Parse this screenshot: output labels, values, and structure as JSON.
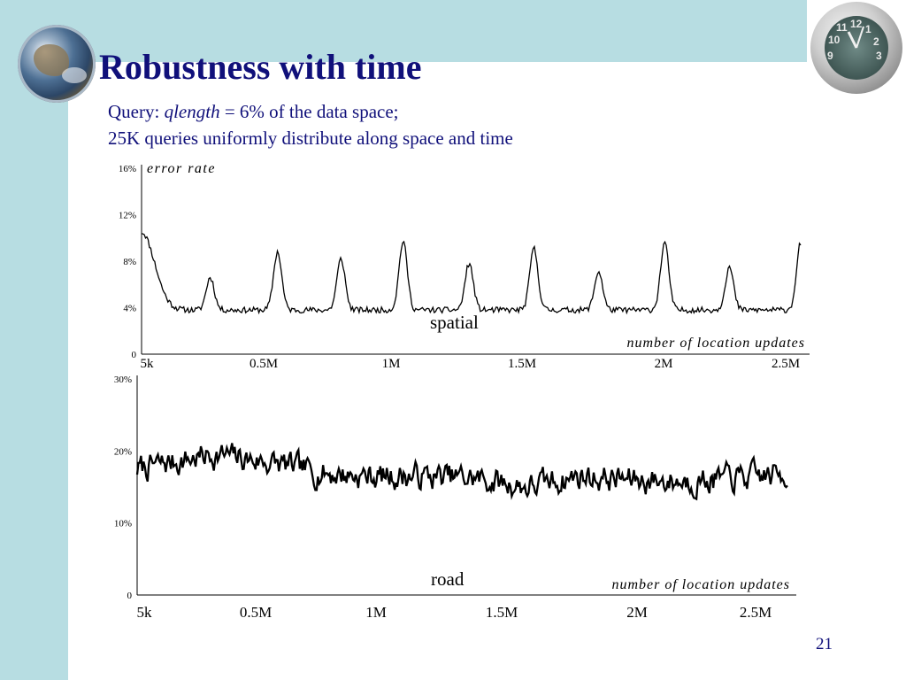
{
  "slide": {
    "title": "Robustness with time",
    "query_prefix": "Query: ",
    "query_var": "qlength",
    "query_suffix": " = 6% of the data space;",
    "line2": "25K queries uniformly distribute along space and time",
    "page_number": "21"
  },
  "decor": {
    "left_image": "globe-image",
    "right_image": "clock-image",
    "clock_numbers": [
      "12",
      "1",
      "2",
      "3",
      "9",
      "10",
      "11"
    ]
  },
  "colors": {
    "band": "#b7dde2",
    "title": "#10107a",
    "line": "#000000"
  },
  "chart_data": [
    {
      "type": "line",
      "label": "spatial",
      "xlabel": "number of location updates",
      "ylabel": "error rate",
      "xlim": [
        5000,
        2500000
      ],
      "ylim": [
        0,
        16
      ],
      "x_ticks": [
        "5k",
        "0.5M",
        "1M",
        "1.5M",
        "2M",
        "2.5M"
      ],
      "x_tick_values": [
        5000,
        500000,
        1000000,
        1500000,
        2000000,
        2500000
      ],
      "y_ticks": [
        "0",
        "4%",
        "8%",
        "12%",
        "16%"
      ],
      "y_tick_values": [
        0,
        4,
        8,
        12,
        16
      ],
      "peaks_x": [
        265000,
        520000,
        760000,
        995000,
        1245000,
        1490000,
        1735000,
        1985000,
        2230000
      ],
      "peaks_y": [
        6.6,
        8.8,
        8.2,
        9.7,
        7.8,
        9.1,
        7.1,
        9.6,
        7.5
      ],
      "baseline": 3.8,
      "start_value": 10.5,
      "end_value": 9.6,
      "grid": false
    },
    {
      "type": "line",
      "label": "road",
      "xlabel": "number of location updates",
      "xlim": [
        5000,
        2500000
      ],
      "ylim": [
        0,
        30
      ],
      "x_ticks": [
        "5k",
        "0.5M",
        "1M",
        "1.5M",
        "2M",
        "2.5M"
      ],
      "x_tick_values": [
        5000,
        500000,
        1000000,
        1500000,
        2000000,
        2500000
      ],
      "y_ticks": [
        "0",
        "10%",
        "20%",
        "30%"
      ],
      "y_tick_values": [
        0,
        10,
        20,
        30
      ],
      "trend_x": [
        5000,
        150000,
        300000,
        500000,
        700000,
        900000,
        1100000,
        1300000,
        1500000,
        1700000,
        1900000,
        2100000,
        2300000,
        2500000
      ],
      "trend_y": [
        17.5,
        18.5,
        19.5,
        18.5,
        17.0,
        16.5,
        16.5,
        16.2,
        15.0,
        16.5,
        16.0,
        15.8,
        16.2,
        16.8
      ],
      "noise": 1.5,
      "grid": false
    }
  ]
}
